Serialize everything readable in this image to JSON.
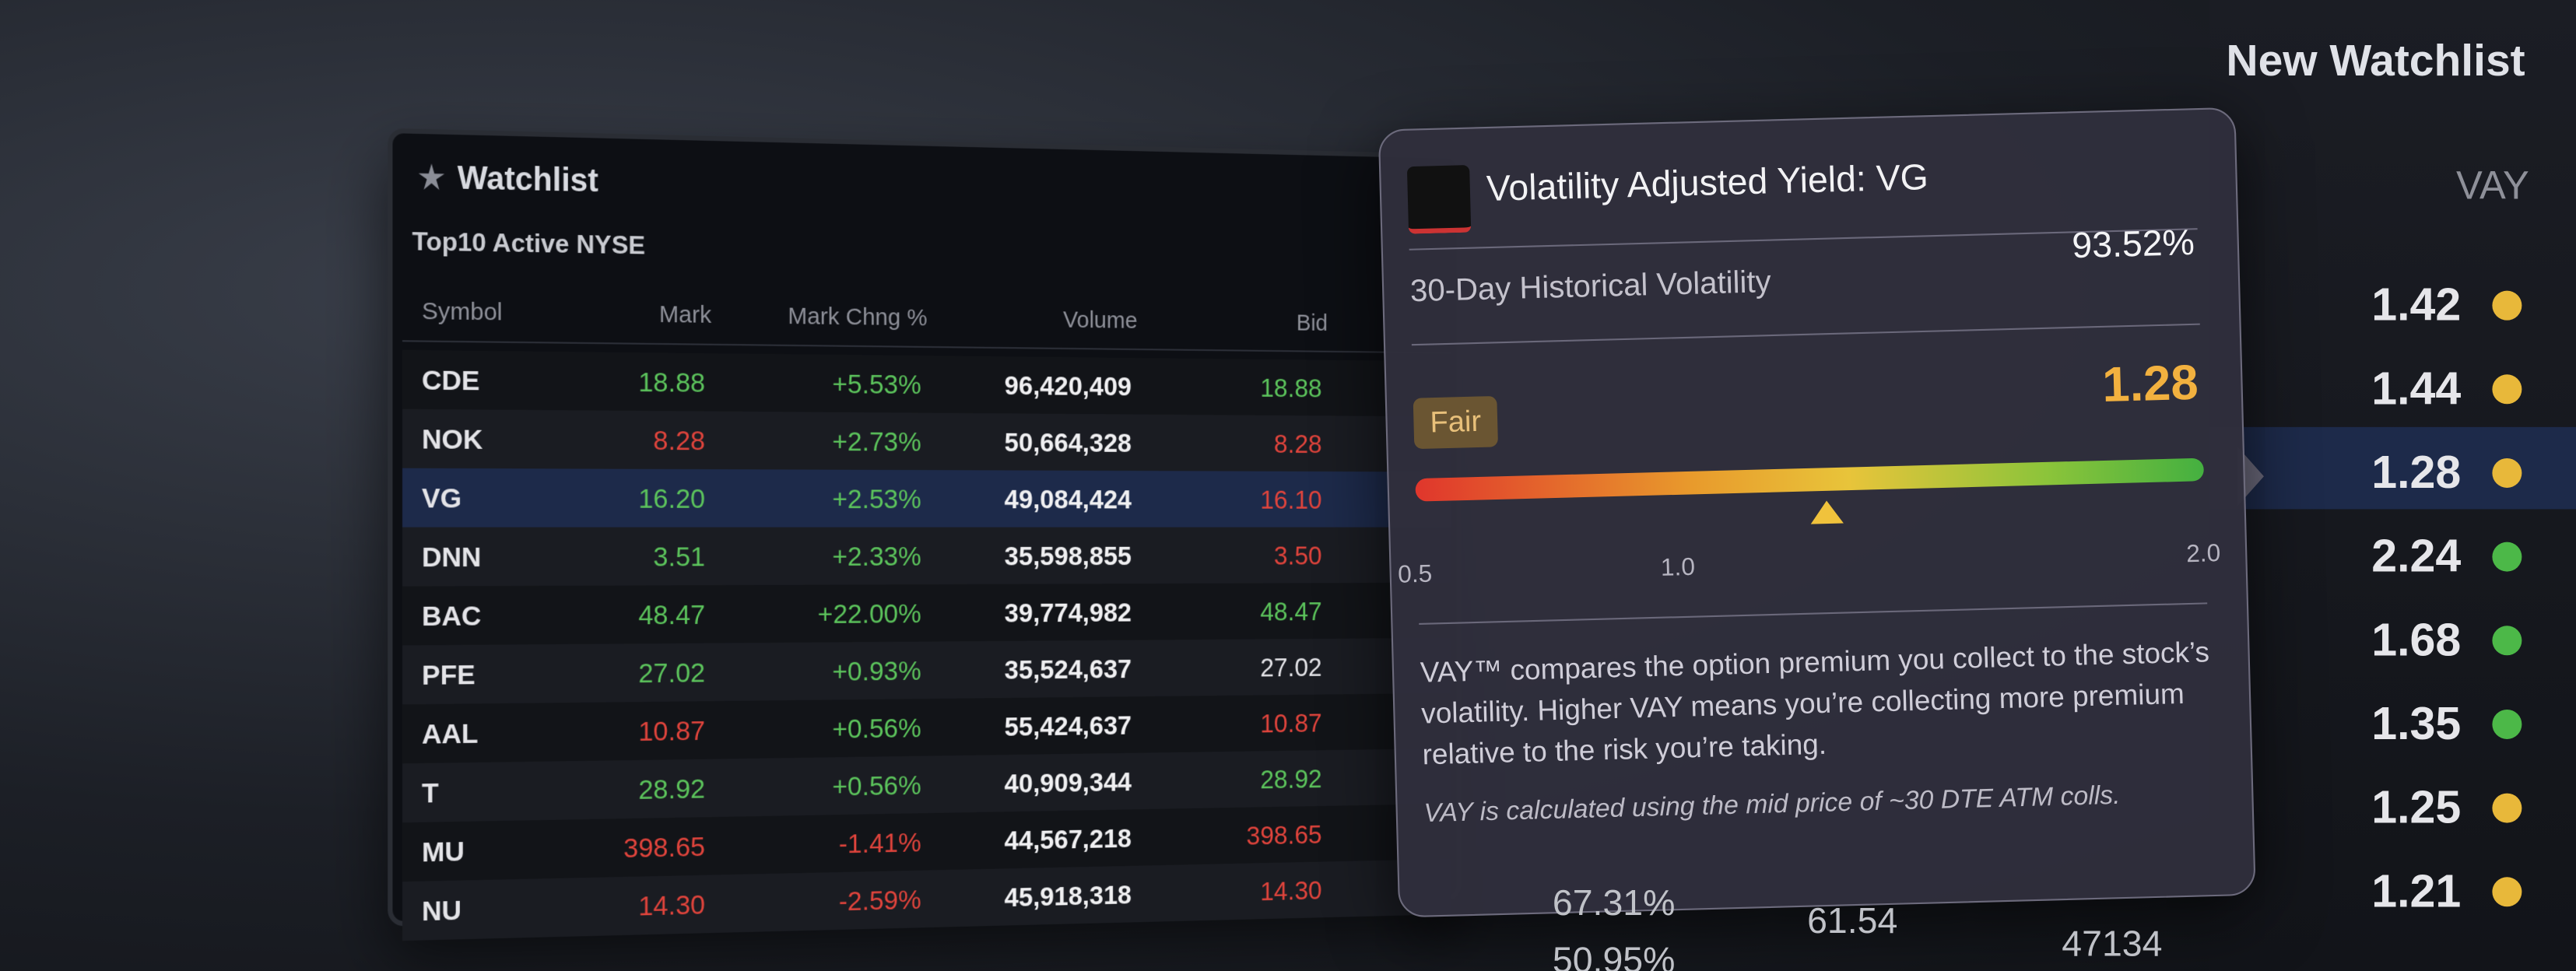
{
  "watchlist": {
    "title": "Watchlist",
    "subtitle": "Top10 Active NYSE",
    "columns": [
      "Symbol",
      "Mark",
      "Mark Chng %",
      "Volume",
      "Bid"
    ],
    "rows": [
      {
        "symbol": "CDE",
        "mark": "18.88",
        "mark_color": "#5cc45c",
        "change": "+5.53%",
        "volume": "96,420,409",
        "bid": "18.88",
        "bid_color": "#5cc45c"
      },
      {
        "symbol": "NOK",
        "mark": "8.28",
        "mark_color": "#e0443c",
        "change": "+2.73%",
        "volume": "50,664,328",
        "bid": "8.28",
        "bid_color": "#e0443c"
      },
      {
        "symbol": "VG",
        "mark": "16.20",
        "mark_color": "#5cc45c",
        "change": "+2.53%",
        "volume": "49,084,424",
        "bid": "16.10",
        "bid_color": "#e0443c"
      },
      {
        "symbol": "DNN",
        "mark": "3.51",
        "mark_color": "#5cc45c",
        "change": "+2.33%",
        "volume": "35,598,855",
        "bid": "3.50",
        "bid_color": "#e0443c"
      },
      {
        "symbol": "BAC",
        "mark": "48.47",
        "mark_color": "#5cc45c",
        "change": "+22.00%",
        "volume": "39,774,982",
        "bid": "48.47",
        "bid_color": "#5cc45c"
      },
      {
        "symbol": "PFE",
        "mark": "27.02",
        "mark_color": "#5cc45c",
        "change": "+0.93%",
        "volume": "35,524,637",
        "bid": "27.02",
        "bid_color": "#e4e4e8"
      },
      {
        "symbol": "AAL",
        "mark": "10.87",
        "mark_color": "#e0443c",
        "change": "+0.56%",
        "volume": "55,424,637",
        "bid": "10.87",
        "bid_color": "#e0443c"
      },
      {
        "symbol": "T",
        "mark": "28.92",
        "mark_color": "#5cc45c",
        "change": "+0.56%",
        "volume": "40,909,344",
        "bid": "28.92",
        "bid_color": "#5cc45c"
      },
      {
        "symbol": "MU",
        "mark": "398.65",
        "mark_color": "#e0443c",
        "change": "-1.41%",
        "volume": "44,567,218",
        "bid": "398.65",
        "bid_color": "#e0443c"
      },
      {
        "symbol": "NU",
        "mark": "14.30",
        "mark_color": "#e0443c",
        "change": "-2.59%",
        "volume": "45,918,318",
        "bid": "14.30",
        "bid_color": "#e0443c"
      }
    ],
    "extra": [
      "67.31%",
      "61.54",
      "47134",
      "50.95%"
    ]
  },
  "vay_panel": {
    "title": "New Watchlist",
    "column": "VAY",
    "rows": [
      {
        "value": "1.42",
        "color": "#e8b83a"
      },
      {
        "value": "1.44",
        "color": "#e8b83a"
      },
      {
        "value": "1.28",
        "color": "#e8b83a"
      },
      {
        "value": "2.24",
        "color": "#4cb848"
      },
      {
        "value": "1.68",
        "color": "#4cb848"
      },
      {
        "value": "1.35",
        "color": "#4cb848"
      },
      {
        "value": "1.25",
        "color": "#e8b83a"
      },
      {
        "value": "1.21",
        "color": "#e8b83a"
      }
    ]
  },
  "tooltip": {
    "title": "Volatility Adjusted Yield: VG",
    "metric_label": "30-Day Historical Volatility",
    "metric_value": "93.52%",
    "rating": "Fair",
    "vay": 1.28,
    "scale_min": 0.5,
    "scale_max": 2,
    "ticks": [
      0.5,
      {
        "value": 1,
        "label": "1.0"
      },
      {
        "value": 2,
        "label": "2.0"
      }
    ],
    "description": "VAY™ compares the option premium you collect to the stock’s volatility. Higher VAY means you’re collecting more premium relative to the risk you’re taking.",
    "note": "VAY is calculated using the mid price of ~30 DTE ATM colls."
  }
}
